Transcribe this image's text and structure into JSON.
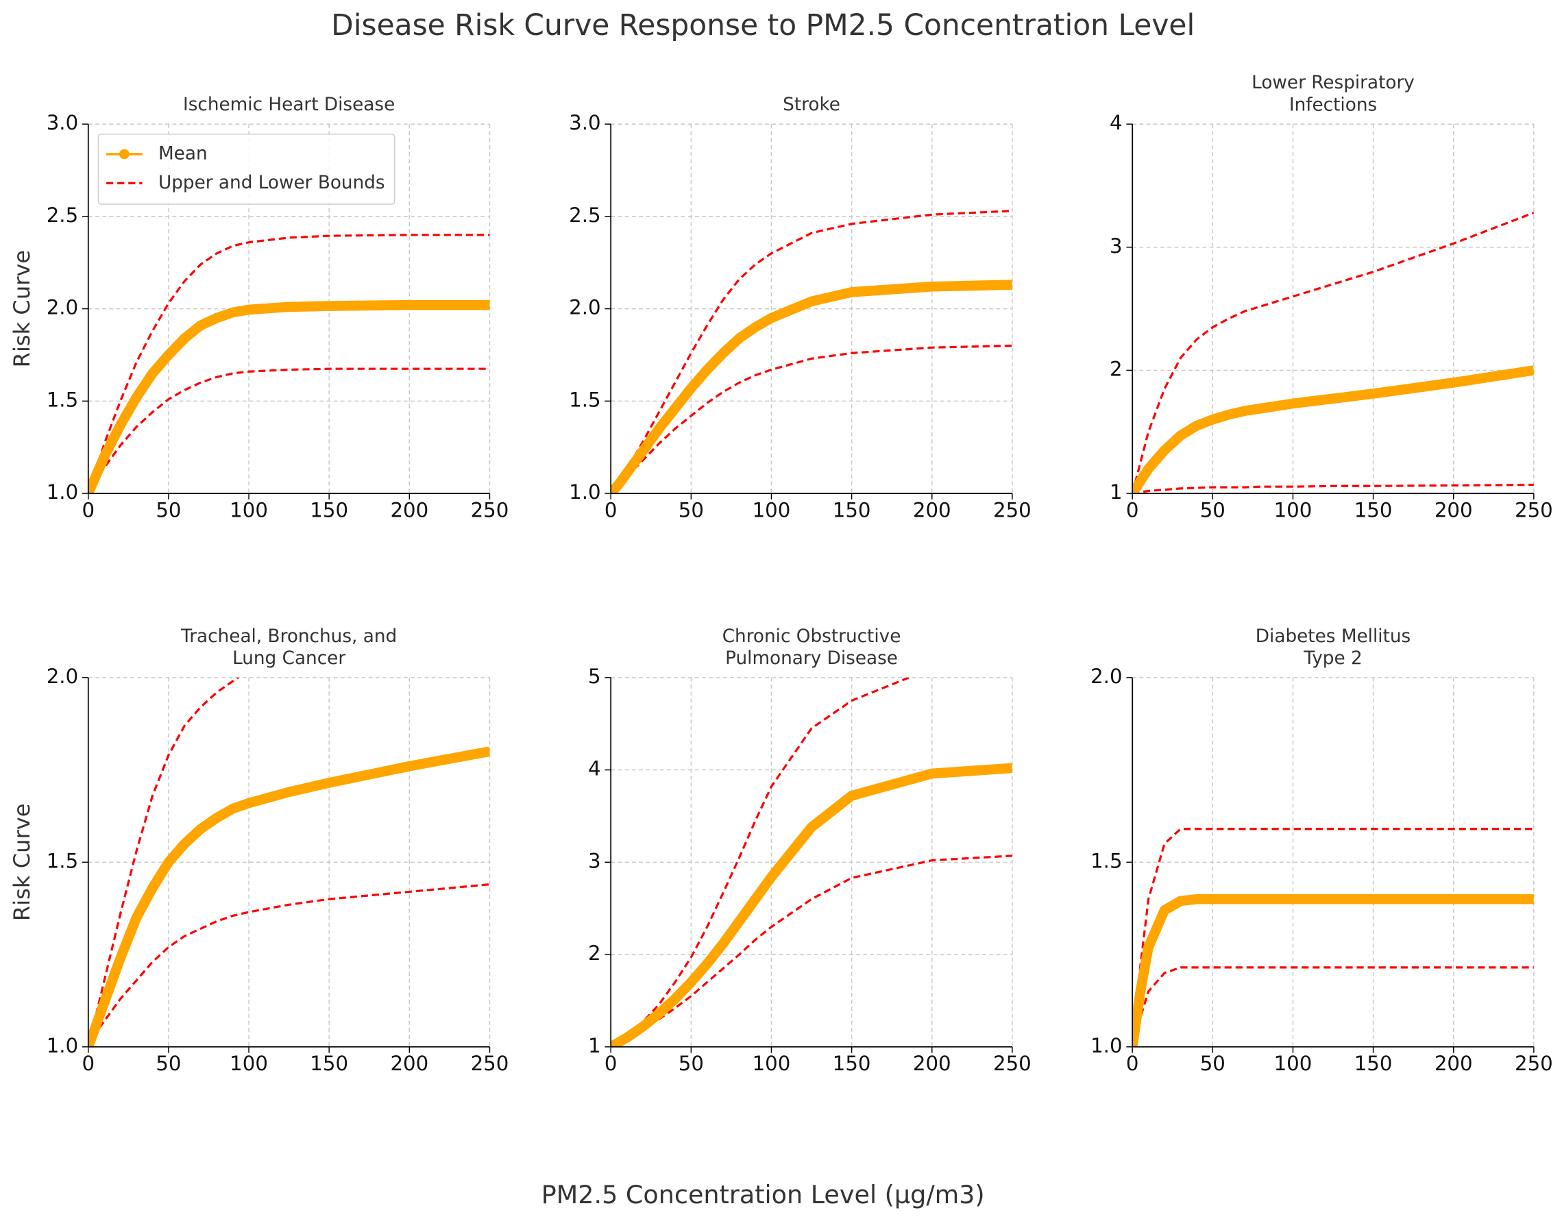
{
  "title": "Disease Risk Curve Response to PM2.5 Concentration Level",
  "xlabel": "PM2.5 Concentration Level (µg/m3)",
  "chart_data": [
    {
      "type": "line",
      "title": "Ischemic Heart Disease",
      "ylabel": "Risk Curve",
      "legend": "upper left",
      "x": [
        0,
        5,
        10,
        20,
        30,
        40,
        50,
        60,
        70,
        80,
        90,
        100,
        125,
        150,
        200,
        250
      ],
      "xlim": [
        0,
        250
      ],
      "xticks": [
        0,
        50,
        100,
        150,
        200,
        250
      ],
      "ylim": [
        1,
        3
      ],
      "yticks": [
        {
          "value": 1,
          "label": "1.0"
        },
        1.5,
        {
          "value": 2,
          "label": "2.0"
        },
        2.5,
        {
          "value": 3,
          "label": "3.0"
        }
      ],
      "grid": true,
      "series": [
        {
          "name": "Mean",
          "color": "#ffa500",
          "values": [
            1.0,
            1.1,
            1.2,
            1.37,
            1.52,
            1.65,
            1.75,
            1.84,
            1.91,
            1.95,
            1.98,
            1.995,
            2.01,
            2.015,
            2.02,
            2.02
          ]
        },
        {
          "name": "Upper and Lower Bounds",
          "color": "#ff0000",
          "upper": [
            1.0,
            1.13,
            1.27,
            1.5,
            1.71,
            1.88,
            2.03,
            2.15,
            2.24,
            2.3,
            2.34,
            2.36,
            2.385,
            2.395,
            2.4,
            2.4
          ],
          "lower": [
            1.0,
            1.07,
            1.14,
            1.26,
            1.36,
            1.44,
            1.51,
            1.56,
            1.6,
            1.63,
            1.65,
            1.66,
            1.67,
            1.675,
            1.675,
            1.675
          ]
        }
      ]
    },
    {
      "type": "line",
      "title": "Stroke",
      "x": [
        0,
        5,
        10,
        20,
        30,
        40,
        50,
        60,
        70,
        80,
        90,
        100,
        125,
        150,
        200,
        250
      ],
      "xlim": [
        0,
        250
      ],
      "xticks": [
        0,
        50,
        100,
        150,
        200,
        250
      ],
      "ylim": [
        1,
        3
      ],
      "yticks": [
        {
          "value": 1,
          "label": "1.0"
        },
        1.5,
        {
          "value": 2,
          "label": "2.0"
        },
        2.5,
        {
          "value": 3,
          "label": "3.0"
        }
      ],
      "grid": true,
      "series": [
        {
          "color": "#ffa500",
          "values": [
            1.0,
            1.05,
            1.11,
            1.23,
            1.35,
            1.46,
            1.57,
            1.67,
            1.76,
            1.84,
            1.9,
            1.95,
            2.04,
            2.09,
            2.12,
            2.13
          ]
        },
        {
          "color": "#ff0000",
          "upper": [
            1.0,
            1.06,
            1.13,
            1.28,
            1.44,
            1.6,
            1.76,
            1.91,
            2.05,
            2.16,
            2.24,
            2.3,
            2.41,
            2.46,
            2.51,
            2.53
          ],
          "lower": [
            1.0,
            1.04,
            1.09,
            1.18,
            1.27,
            1.35,
            1.42,
            1.49,
            1.55,
            1.6,
            1.64,
            1.67,
            1.73,
            1.76,
            1.79,
            1.8
          ]
        }
      ]
    },
    {
      "type": "line",
      "title": "Lower Respiratory\nInfections",
      "x": [
        0,
        5,
        10,
        20,
        30,
        40,
        50,
        60,
        70,
        80,
        90,
        100,
        125,
        150,
        200,
        250
      ],
      "xlim": [
        0,
        250
      ],
      "xticks": [
        0,
        50,
        100,
        150,
        200,
        250
      ],
      "ylim": [
        1,
        4
      ],
      "yticks": [
        1,
        2,
        3,
        4
      ],
      "grid": true,
      "series": [
        {
          "color": "#ffa500",
          "values": [
            1.0,
            1.1,
            1.2,
            1.35,
            1.47,
            1.55,
            1.6,
            1.64,
            1.67,
            1.69,
            1.71,
            1.73,
            1.77,
            1.81,
            1.9,
            2.0
          ]
        },
        {
          "color": "#ff0000",
          "upper": [
            1.0,
            1.25,
            1.5,
            1.85,
            2.1,
            2.25,
            2.35,
            2.42,
            2.48,
            2.52,
            2.56,
            2.6,
            2.7,
            2.8,
            3.03,
            3.28
          ],
          "lower": [
            1.0,
            1.01,
            1.02,
            1.03,
            1.04,
            1.045,
            1.05,
            1.05,
            1.05,
            1.055,
            1.055,
            1.055,
            1.06,
            1.06,
            1.065,
            1.07
          ]
        }
      ]
    },
    {
      "type": "line",
      "title": "Tracheal, Bronchus, and\nLung Cancer",
      "ylabel": "Risk Curve",
      "x": [
        0,
        5,
        10,
        20,
        30,
        40,
        50,
        60,
        70,
        80,
        90,
        100,
        125,
        150,
        200,
        250
      ],
      "xlim": [
        0,
        250
      ],
      "xticks": [
        0,
        50,
        100,
        150,
        200,
        250
      ],
      "ylim": [
        1,
        2
      ],
      "yticks": [
        {
          "value": 1,
          "label": "1.0"
        },
        1.5,
        {
          "value": 2,
          "label": "2.0"
        }
      ],
      "grid": true,
      "series": [
        {
          "color": "#ffa500",
          "values": [
            1.0,
            1.06,
            1.12,
            1.24,
            1.35,
            1.43,
            1.5,
            1.55,
            1.59,
            1.62,
            1.645,
            1.66,
            1.69,
            1.715,
            1.76,
            1.8
          ]
        },
        {
          "color": "#ff0000",
          "upper": [
            1.0,
            1.09,
            1.18,
            1.36,
            1.53,
            1.68,
            1.79,
            1.87,
            1.92,
            1.96,
            1.99,
            2.02,
            null,
            null,
            null,
            null
          ],
          "lower": [
            1.0,
            1.04,
            1.07,
            1.13,
            1.18,
            1.23,
            1.27,
            1.3,
            1.32,
            1.34,
            1.355,
            1.365,
            1.385,
            1.4,
            1.42,
            1.44
          ]
        }
      ]
    },
    {
      "type": "line",
      "title": "Chronic Obstructive\nPulmonary Disease",
      "x": [
        0,
        5,
        10,
        20,
        30,
        40,
        50,
        60,
        70,
        80,
        90,
        100,
        125,
        150,
        200,
        250
      ],
      "xlim": [
        0,
        250
      ],
      "xticks": [
        0,
        50,
        100,
        150,
        200,
        250
      ],
      "ylim": [
        1,
        5
      ],
      "yticks": [
        1,
        2,
        3,
        4,
        5
      ],
      "grid": true,
      "series": [
        {
          "color": "#ffa500",
          "values": [
            1.0,
            1.05,
            1.1,
            1.22,
            1.36,
            1.52,
            1.7,
            1.9,
            2.12,
            2.36,
            2.6,
            2.84,
            3.38,
            3.72,
            3.96,
            4.02
          ]
        },
        {
          "color": "#ff0000",
          "upper": [
            1.0,
            1.05,
            1.11,
            1.27,
            1.46,
            1.7,
            1.97,
            2.3,
            2.67,
            3.05,
            3.45,
            3.82,
            4.45,
            4.75,
            5.1,
            null
          ],
          "lower": [
            1.0,
            1.04,
            1.09,
            1.19,
            1.3,
            1.42,
            1.55,
            1.7,
            1.85,
            2.0,
            2.16,
            2.3,
            2.6,
            2.83,
            3.02,
            3.07
          ]
        }
      ]
    },
    {
      "type": "line",
      "title": "Diabetes Mellitus\nType 2",
      "x": [
        0,
        5,
        10,
        20,
        30,
        40,
        50,
        60,
        70,
        80,
        90,
        100,
        125,
        150,
        200,
        250
      ],
      "xlim": [
        0,
        250
      ],
      "xticks": [
        0,
        50,
        100,
        150,
        200,
        250
      ],
      "ylim": [
        1,
        2
      ],
      "yticks": [
        {
          "value": 1,
          "label": "1.0"
        },
        1.5,
        {
          "value": 2,
          "label": "2.0"
        }
      ],
      "grid": true,
      "series": [
        {
          "color": "#ffa500",
          "values": [
            1.0,
            1.15,
            1.27,
            1.37,
            1.395,
            1.4,
            1.4,
            1.4,
            1.4,
            1.4,
            1.4,
            1.4,
            1.4,
            1.4,
            1.4,
            1.4
          ]
        },
        {
          "color": "#ff0000",
          "upper": [
            1.0,
            1.22,
            1.4,
            1.55,
            1.59,
            1.59,
            1.59,
            1.59,
            1.59,
            1.59,
            1.59,
            1.59,
            1.59,
            1.59,
            1.59,
            1.59
          ],
          "lower": [
            1.0,
            1.08,
            1.15,
            1.2,
            1.215,
            1.215,
            1.215,
            1.215,
            1.215,
            1.215,
            1.215,
            1.215,
            1.215,
            1.215,
            1.215,
            1.215
          ]
        }
      ]
    }
  ]
}
